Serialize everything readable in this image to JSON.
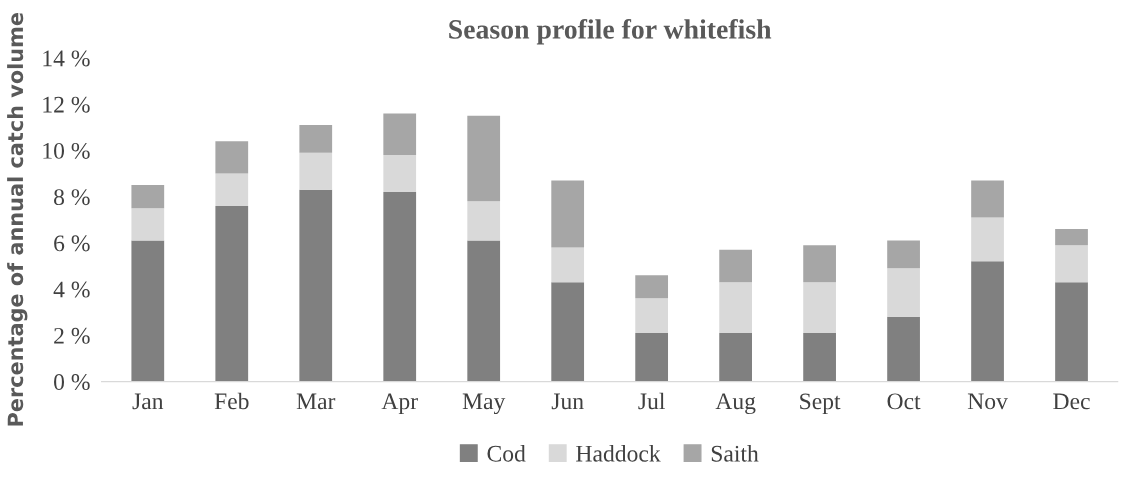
{
  "chart_data": {
    "type": "bar",
    "stacked": true,
    "title": "Season profile for whitefish",
    "ylabel": "Percentage of annual catch volume",
    "categories": [
      "Jan",
      "Feb",
      "Mar",
      "Apr",
      "May",
      "Jun",
      "Jul",
      "Aug",
      "Sept",
      "Oct",
      "Nov",
      "Dec"
    ],
    "series": [
      {
        "name": "Cod",
        "color": "#808080",
        "values": [
          6.1,
          7.6,
          8.3,
          8.2,
          6.1,
          4.3,
          2.1,
          2.1,
          2.1,
          2.8,
          5.2,
          4.3
        ]
      },
      {
        "name": "Haddock",
        "color": "#d9d9d9",
        "values": [
          1.4,
          1.4,
          1.6,
          1.6,
          1.7,
          1.5,
          1.5,
          2.2,
          2.2,
          2.1,
          1.9,
          1.6
        ]
      },
      {
        "name": "Saith",
        "color": "#a6a6a6",
        "values": [
          1.0,
          1.4,
          1.2,
          1.8,
          3.7,
          2.9,
          1.0,
          1.4,
          1.6,
          1.2,
          1.6,
          0.7
        ]
      }
    ],
    "ylim": [
      0,
      14
    ],
    "yticks": [
      {
        "value": 0,
        "label": "0 %"
      },
      {
        "value": 2,
        "label": "2 %"
      },
      {
        "value": 4,
        "label": "4 %"
      },
      {
        "value": 6,
        "label": "6 %"
      },
      {
        "value": 8,
        "label": "8 %"
      },
      {
        "value": 10,
        "label": "10 %"
      },
      {
        "value": 12,
        "label": "12 %"
      },
      {
        "value": 14,
        "label": "14 %"
      }
    ],
    "grid": false,
    "legend": "bottom"
  }
}
